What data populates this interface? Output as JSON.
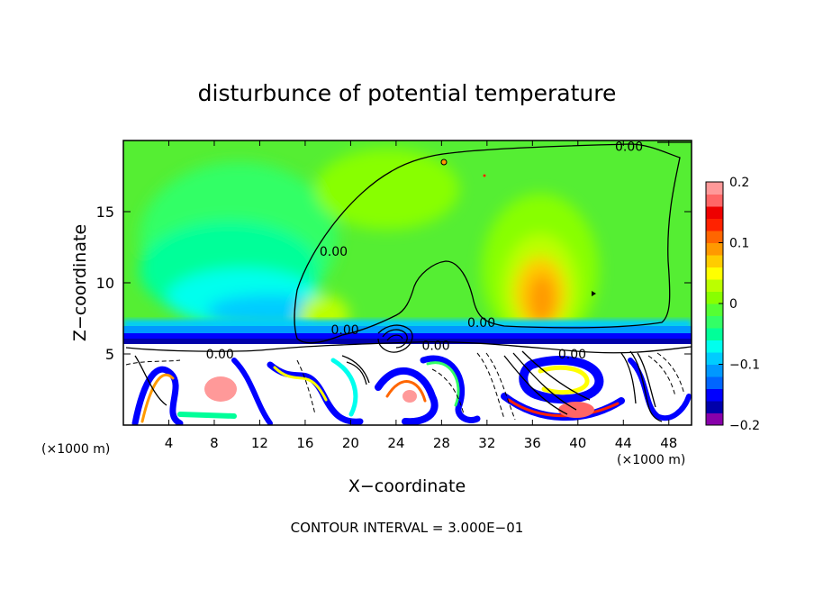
{
  "chart_data": {
    "type": "heatmap",
    "title": "disturbunce of potential temperature",
    "xlabel": "X−coordinate",
    "ylabel": "Z−coordinate",
    "x_unit_label": "(×1000 m)",
    "x_unit_label_right": "(×1000 m)",
    "footer": "CONTOUR INTERVAL = 3.000E−01",
    "xlim": [
      0,
      50
    ],
    "ylim": [
      0,
      20
    ],
    "x_ticks": [
      4,
      8,
      12,
      16,
      20,
      24,
      28,
      32,
      36,
      40,
      44,
      48
    ],
    "y_ticks": [
      5,
      10,
      15
    ],
    "colorbar": {
      "min": -0.2,
      "max": 0.2,
      "tick_labels": [
        "0.2",
        "0.1",
        "0",
        "−0.1",
        "−0.2"
      ],
      "tick_values": [
        0.2,
        0.1,
        0,
        -0.1,
        -0.2
      ],
      "colors": [
        "#8800aa",
        "#0000aa",
        "#0000ff",
        "#0066ff",
        "#0099ff",
        "#00ccff",
        "#00ffee",
        "#00ff99",
        "#33ff66",
        "#55ff33",
        "#88ff00",
        "#bbff00",
        "#ffff00",
        "#ffcc00",
        "#ff9900",
        "#ff6600",
        "#ff2200",
        "#ee0000",
        "#ff6666",
        "#ff9999"
      ]
    },
    "contour_labels": [
      {
        "x": 44.5,
        "z": 19.6,
        "text": "0.00"
      },
      {
        "x": 18.5,
        "z": 12.2,
        "text": "0.00"
      },
      {
        "x": 19.5,
        "z": 6.7,
        "text": "0.00"
      },
      {
        "x": 31.5,
        "z": 7.2,
        "text": "0.00"
      },
      {
        "x": 27.5,
        "z": 5.6,
        "text": "0.00"
      },
      {
        "x": 39.5,
        "z": 5.0,
        "text": "0.00"
      },
      {
        "x": 8.5,
        "z": 5.0,
        "text": "0.00"
      }
    ]
  }
}
